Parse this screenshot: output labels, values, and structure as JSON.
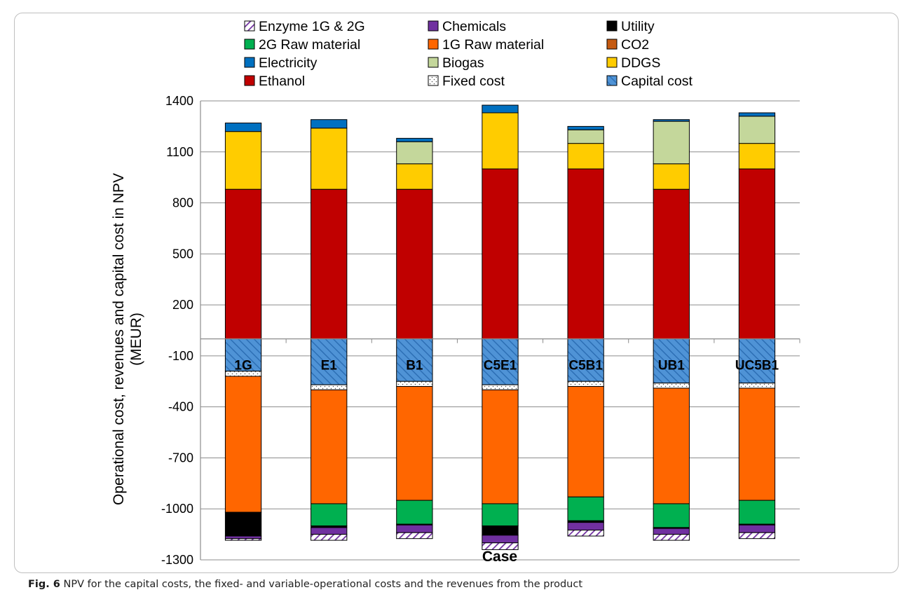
{
  "caption": {
    "label": "Fig. 6",
    "text": "NPV for the capital costs, the fixed- and variable-operational costs and the revenues from the product"
  },
  "chart_data": {
    "type": "bar",
    "stacked": true,
    "xlabel": "Case",
    "ylabel_line1": "Operational cost, revenues and capital cost in NPV",
    "ylabel_line2": "(MEUR)",
    "ylim": [
      -1300,
      1400
    ],
    "yticks": [
      -1300,
      -1000,
      -700,
      -400,
      -100,
      200,
      500,
      800,
      1100,
      1400
    ],
    "grid": true,
    "legend_position": "top",
    "categories": [
      "1G",
      "E1",
      "B1",
      "C5E1",
      "C5B1",
      "UB1",
      "UC5B1"
    ],
    "series": [
      {
        "name": "Ethanol",
        "color": "#c00000",
        "pattern": "solid",
        "values": [
          880,
          880,
          880,
          1000,
          1000,
          880,
          1000
        ]
      },
      {
        "name": "DDGS",
        "color": "#ffcc00",
        "pattern": "solid",
        "values": [
          340,
          360,
          150,
          330,
          150,
          150,
          150
        ]
      },
      {
        "name": "Biogas",
        "color": "#c4d79b",
        "pattern": "solid",
        "values": [
          0,
          0,
          130,
          0,
          80,
          250,
          160
        ]
      },
      {
        "name": "Electricity",
        "color": "#0070c0",
        "pattern": "solid",
        "values": [
          50,
          50,
          20,
          45,
          20,
          10,
          20
        ]
      },
      {
        "name": "Capital cost",
        "color": "#3d8fd4",
        "pattern": "hatch-blue",
        "values": [
          -190,
          -270,
          -250,
          -270,
          -250,
          -260,
          -260
        ]
      },
      {
        "name": "Fixed cost",
        "color": "#ffffff",
        "pattern": "dots",
        "values": [
          -30,
          -30,
          -30,
          -30,
          -30,
          -30,
          -30
        ]
      },
      {
        "name": "1G Raw material",
        "color": "#ff6600",
        "pattern": "solid",
        "values": [
          -800,
          -670,
          -670,
          -670,
          -650,
          -680,
          -660
        ]
      },
      {
        "name": "2G Raw material",
        "color": "#00b050",
        "pattern": "solid",
        "values": [
          0,
          -130,
          -140,
          -130,
          -140,
          -140,
          -140
        ]
      },
      {
        "name": "Utility",
        "color": "#000000",
        "pattern": "solid",
        "values": [
          -140,
          -10,
          -5,
          -55,
          -10,
          -5,
          -5
        ]
      },
      {
        "name": "Chemicals",
        "color": "#7030a0",
        "pattern": "solid",
        "values": [
          -15,
          -40,
          -45,
          -45,
          -45,
          -35,
          -45
        ]
      },
      {
        "name": "CO2",
        "color": "#c55a11",
        "pattern": "solid",
        "values": [
          0,
          0,
          0,
          0,
          0,
          0,
          0
        ]
      },
      {
        "name": "Enzyme 1G & 2G",
        "color": "#7030a0",
        "pattern": "hatch-purple",
        "values": [
          -10,
          -35,
          -35,
          -40,
          -35,
          -35,
          -35
        ]
      }
    ],
    "legend_order": [
      "Enzyme 1G & 2G",
      "Chemicals",
      "Utility",
      "2G Raw material",
      "1G Raw material",
      "CO2",
      "Electricity",
      "Biogas",
      "DDGS",
      "Ethanol",
      "Fixed cost",
      "Capital cost"
    ]
  }
}
